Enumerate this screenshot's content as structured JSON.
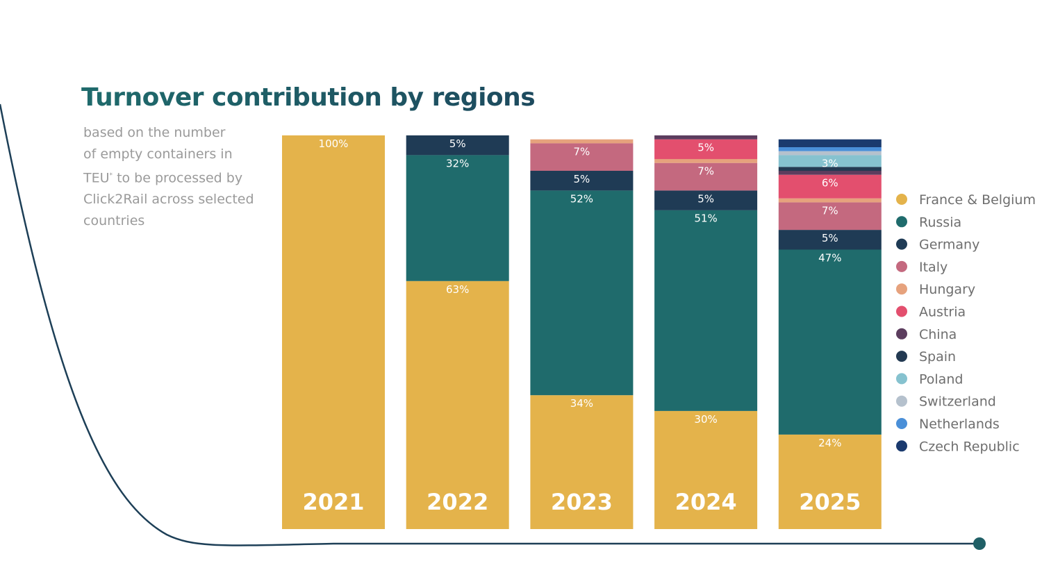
{
  "title": "Turnover contribution by regions",
  "subtitle": {
    "line1": "based on the number",
    "line2": "of empty containers in",
    "line3_pre": "TEU",
    "line3_sup": "*",
    "line3_post": " to be processed by",
    "line4": "Click2Rail across selected",
    "line5": "countries"
  },
  "colors": {
    "title_start": "#1f6b6c",
    "title_end": "#1d4a5e",
    "curve": "#1d3f57",
    "curve_dot": "#1f5f66",
    "subtitle": "#9a9a9a",
    "legend_text": "#6e6e6e"
  },
  "chart_data": {
    "type": "bar",
    "stacked": true,
    "title": "Turnover contribution by regions",
    "categories": [
      "2021",
      "2022",
      "2023",
      "2024",
      "2025"
    ],
    "series": [
      {
        "name": "France & Belgium",
        "color": "#e4b34b",
        "values": [
          100,
          63,
          34,
          30,
          24
        ],
        "labels": [
          "100%",
          "63%",
          "34%",
          "30%",
          "24%"
        ]
      },
      {
        "name": "Russia",
        "color": "#1f6b6c",
        "values": [
          0,
          32,
          52,
          51,
          47
        ],
        "labels": [
          "",
          "32%",
          "52%",
          "51%",
          "47%"
        ]
      },
      {
        "name": "Germany",
        "color": "#1f3b55",
        "values": [
          0,
          5,
          5,
          5,
          5
        ],
        "labels": [
          "",
          "5%",
          "5%",
          "5%",
          "5%"
        ]
      },
      {
        "name": "Italy",
        "color": "#c4697f",
        "values": [
          0,
          0,
          7,
          7,
          7
        ],
        "labels": [
          "",
          "",
          "7%",
          "7%",
          "7%"
        ]
      },
      {
        "name": "Hungary",
        "color": "#e6a27d",
        "values": [
          0,
          0,
          1,
          1,
          1
        ],
        "labels": [
          "",
          "",
          "",
          "",
          ""
        ]
      },
      {
        "name": "Austria",
        "color": "#e34f6e",
        "values": [
          0,
          0,
          0,
          5,
          6
        ],
        "labels": [
          "",
          "",
          "",
          "5%",
          "6%"
        ]
      },
      {
        "name": "China",
        "color": "#5c3d5e",
        "values": [
          0,
          0,
          0,
          1,
          1
        ],
        "labels": [
          "",
          "",
          "",
          "",
          ""
        ]
      },
      {
        "name": "Spain",
        "color": "#233a52",
        "values": [
          0,
          0,
          0,
          0,
          1
        ],
        "labels": [
          "",
          "",
          "",
          "",
          ""
        ]
      },
      {
        "name": "Poland",
        "color": "#86c2cf",
        "values": [
          0,
          0,
          0,
          0,
          3
        ],
        "labels": [
          "",
          "",
          "",
          "",
          "3%"
        ]
      },
      {
        "name": "Switzerland",
        "color": "#b5c1cd",
        "values": [
          0,
          0,
          0,
          0,
          1
        ],
        "labels": [
          "",
          "",
          "",
          "",
          ""
        ]
      },
      {
        "name": "Netherlands",
        "color": "#4a8fd8",
        "values": [
          0,
          0,
          0,
          0,
          1
        ],
        "labels": [
          "",
          "",
          "",
          "",
          ""
        ]
      },
      {
        "name": "Czech Republic",
        "color": "#1a3a6e",
        "values": [
          0,
          0,
          0,
          0,
          2
        ],
        "labels": [
          "",
          "",
          "",
          "",
          ""
        ]
      }
    ],
    "ylim": [
      0,
      100
    ],
    "legend_position": "right",
    "grid": false
  }
}
